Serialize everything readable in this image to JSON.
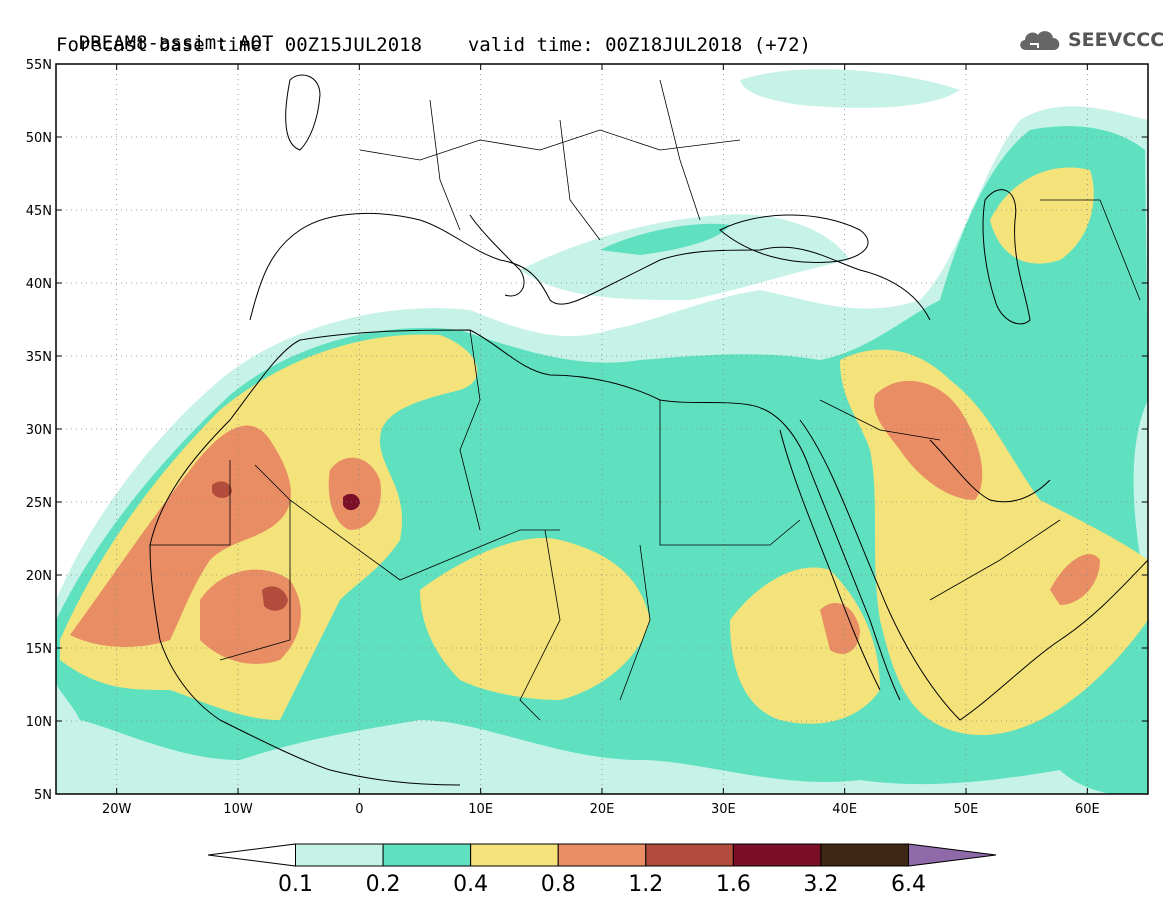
{
  "header": {
    "line1": "DREAM8-assim: AOT",
    "line2_base": "Forecast base time: 00Z15JUL2018",
    "line2_valid": "valid time: 00Z18JUL2018 (+72)"
  },
  "logo": {
    "text": "SEEVCCC",
    "icon": "cloud-icon"
  },
  "map": {
    "lon_range": [
      -25,
      65
    ],
    "lat_range": [
      5,
      55
    ],
    "lat_ticks": [
      {
        "lat": 55,
        "label": "55N"
      },
      {
        "lat": 50,
        "label": "50N"
      },
      {
        "lat": 45,
        "label": "45N"
      },
      {
        "lat": 40,
        "label": "40N"
      },
      {
        "lat": 35,
        "label": "35N"
      },
      {
        "lat": 30,
        "label": "30N"
      },
      {
        "lat": 25,
        "label": "25N"
      },
      {
        "lat": 20,
        "label": "20N"
      },
      {
        "lat": 15,
        "label": "15N"
      },
      {
        "lat": 10,
        "label": "10N"
      },
      {
        "lat": 5,
        "label": "5N"
      }
    ],
    "lon_ticks": [
      {
        "lon": -20,
        "label": "20W"
      },
      {
        "lon": -10,
        "label": "10W"
      },
      {
        "lon": 0,
        "label": "0"
      },
      {
        "lon": 10,
        "label": "10E"
      },
      {
        "lon": 20,
        "label": "20E"
      },
      {
        "lon": 30,
        "label": "30E"
      },
      {
        "lon": 40,
        "label": "40E"
      },
      {
        "lon": 50,
        "label": "50E"
      },
      {
        "lon": 60,
        "label": "60E"
      }
    ],
    "grid": true
  },
  "colorbar": {
    "colors": [
      "#ffffff",
      "#c6f2e8",
      "#5fe1c0",
      "#f4e27a",
      "#e88d64",
      "#b24c3c",
      "#7a0f27",
      "#3e2714",
      "#8f6aa8"
    ],
    "labels": [
      "0.1",
      "0.2",
      "0.4",
      "0.8",
      "1.2",
      "1.6",
      "3.2",
      "6.4"
    ]
  }
}
